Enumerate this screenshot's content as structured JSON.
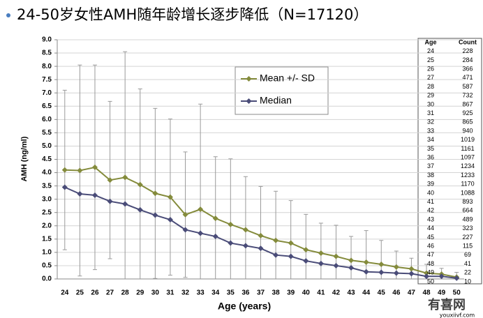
{
  "title": "24-50岁女性AMH随年龄增长逐步降低（N=17120）",
  "chart_data": {
    "type": "line",
    "x_label": "Age (years)",
    "y_label": "AMH (ng/ml)",
    "categories": [
      "24",
      "25",
      "26",
      "27",
      "28",
      "29",
      "30",
      "31",
      "32",
      "33",
      "34",
      "35",
      "36",
      "37",
      "38",
      "39",
      "40",
      "41",
      "42",
      "43",
      "44",
      "45",
      "46",
      "47",
      "48",
      "49",
      "50"
    ],
    "series": [
      {
        "name": "Mean +/- SD",
        "color": "#848b3c",
        "marker": "diamond",
        "values": [
          4.1,
          4.08,
          4.2,
          3.72,
          3.82,
          3.55,
          3.22,
          3.08,
          2.42,
          2.62,
          2.28,
          2.05,
          1.85,
          1.63,
          1.45,
          1.35,
          1.1,
          0.97,
          0.85,
          0.7,
          0.63,
          0.55,
          0.45,
          0.38,
          0.22,
          0.18,
          0.07
        ],
        "errors": [
          3.0,
          3.97,
          3.85,
          2.96,
          4.73,
          3.6,
          3.2,
          2.94,
          2.36,
          3.96,
          2.32,
          2.47,
          2.0,
          1.85,
          1.85,
          1.6,
          1.33,
          1.13,
          1.17,
          0.9,
          1.19,
          0.9,
          0.6,
          0.4,
          0.33,
          0.22,
          0.18
        ]
      },
      {
        "name": "Median",
        "color": "#4a4c78",
        "marker": "diamond",
        "values": [
          3.45,
          3.2,
          3.15,
          2.92,
          2.82,
          2.6,
          2.4,
          2.23,
          1.85,
          1.72,
          1.6,
          1.35,
          1.25,
          1.15,
          0.9,
          0.85,
          0.68,
          0.58,
          0.5,
          0.42,
          0.27,
          0.25,
          0.22,
          0.2,
          0.1,
          0.1,
          0.03
        ]
      }
    ],
    "ylim": [
      0,
      9
    ],
    "yticks": [
      {
        "value": 0,
        "label": "0.0"
      },
      {
        "value": 0.5,
        "label": "0.5"
      },
      {
        "value": 1,
        "label": "1.0"
      },
      {
        "value": 1.5,
        "label": "1.5"
      },
      {
        "value": 2,
        "label": "2.0"
      },
      {
        "value": 2.5,
        "label": "2.5"
      },
      {
        "value": 3,
        "label": "3.0"
      },
      {
        "value": 3.5,
        "label": "3.5"
      },
      {
        "value": 4,
        "label": "4.0"
      },
      {
        "value": 4.5,
        "label": "4.5"
      },
      {
        "value": 5,
        "label": "5.0"
      },
      {
        "value": 5.5,
        "label": "5.5"
      },
      {
        "value": 6,
        "label": "6.0"
      },
      {
        "value": 6.5,
        "label": "6.5"
      },
      {
        "value": 7,
        "label": "7.0"
      },
      {
        "value": 7.5,
        "label": "7.5"
      },
      {
        "value": 8,
        "label": "8.0"
      },
      {
        "value": 8.5,
        "label": "8.5"
      },
      {
        "value": 9,
        "label": "9.0"
      }
    ],
    "grid": true,
    "error_color": "#9a9a9a"
  },
  "count_table": {
    "headers": [
      "Age",
      "Count"
    ],
    "rows": [
      [
        24,
        228
      ],
      [
        25,
        284
      ],
      [
        26,
        366
      ],
      [
        27,
        471
      ],
      [
        28,
        587
      ],
      [
        29,
        732
      ],
      [
        30,
        867
      ],
      [
        31,
        925
      ],
      [
        32,
        865
      ],
      [
        33,
        940
      ],
      [
        34,
        1019
      ],
      [
        35,
        1161
      ],
      [
        36,
        1097
      ],
      [
        37,
        1234
      ],
      [
        38,
        1233
      ],
      [
        39,
        1170
      ],
      [
        40,
        1088
      ],
      [
        41,
        893
      ],
      [
        42,
        664
      ],
      [
        43,
        489
      ],
      [
        44,
        323
      ],
      [
        45,
        227
      ],
      [
        46,
        115
      ],
      [
        47,
        69
      ],
      [
        48,
        41
      ],
      [
        49,
        22
      ],
      [
        50,
        10
      ]
    ]
  },
  "watermark": {
    "name": "有喜网",
    "url": "youxiivf.com"
  }
}
